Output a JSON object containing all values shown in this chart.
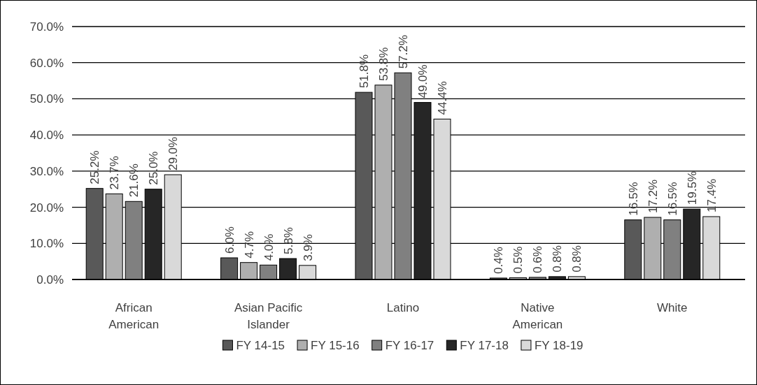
{
  "chart_data": {
    "type": "bar",
    "categories": [
      "African American",
      "Asian Pacific Islander",
      "Latino",
      "Native American",
      "White"
    ],
    "series": [
      {
        "name": "FY 14-15",
        "color": "#595959",
        "values": [
          25.2,
          6.0,
          51.8,
          0.4,
          16.5
        ],
        "value_labels": [
          "25.2%",
          "6.0%",
          "51.8%",
          "0.4%",
          "16.5%"
        ]
      },
      {
        "name": "FY 15-16",
        "color": "#afafaf",
        "values": [
          23.7,
          4.7,
          53.8,
          0.5,
          17.2
        ],
        "value_labels": [
          "23.7%",
          "4.7%",
          "53.8%",
          "0.5%",
          "17.2%"
        ]
      },
      {
        "name": "FY 16-17",
        "color": "#808080",
        "values": [
          21.6,
          4.0,
          57.2,
          0.6,
          16.5
        ],
        "value_labels": [
          "21.6%",
          "4.0%",
          "57.2%",
          "0.6%",
          "16.5%"
        ]
      },
      {
        "name": "FY 17-18",
        "color": "#262626",
        "values": [
          25.0,
          5.8,
          49.0,
          0.8,
          19.5
        ],
        "value_labels": [
          "25.0%",
          "5.8%",
          "49.0%",
          "0.8%",
          "19.5%"
        ]
      },
      {
        "name": "FY 18-19",
        "color": "#d9d9d9",
        "values": [
          29.0,
          3.9,
          44.4,
          0.8,
          17.4
        ],
        "value_labels": [
          "29.0%",
          "3.9%",
          "44.4%",
          "0.8%",
          "17.4%"
        ]
      }
    ],
    "ylim": [
      0,
      70
    ],
    "yticks": [
      {
        "value": 0,
        "label": "0.0%"
      },
      {
        "value": 10,
        "label": "10.0%"
      },
      {
        "value": 20,
        "label": "20.0%"
      },
      {
        "value": 30,
        "label": "30.0%"
      },
      {
        "value": 40,
        "label": "40.0%"
      },
      {
        "value": 50,
        "label": "50.0%"
      },
      {
        "value": 60,
        "label": "60.0%"
      },
      {
        "value": 70,
        "label": "70.0%"
      }
    ],
    "grid": "y",
    "legend": "bottom"
  }
}
